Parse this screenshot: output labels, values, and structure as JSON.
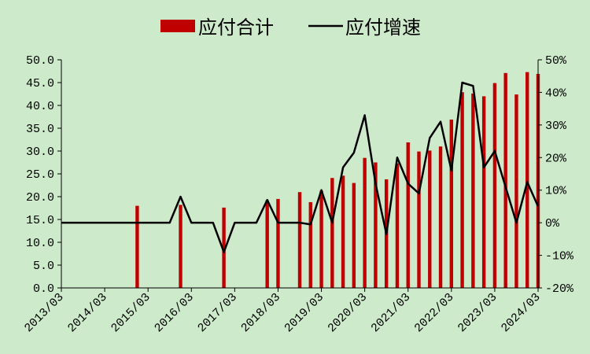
{
  "chart_data": {
    "type": "bar",
    "legend": {
      "position": "top-center",
      "bar_label": "应付合计",
      "line_label": "应付增速"
    },
    "colors": {
      "bar": "#c00000",
      "line": "#000000",
      "background": "#cdeacb"
    },
    "grid": false,
    "x_ticks": [
      "2013/03",
      "2014/03",
      "2015/03",
      "2016/03",
      "2017/03",
      "2018/03",
      "2019/03",
      "2020/03",
      "2021/03",
      "2022/03",
      "2023/03",
      "2024/03"
    ],
    "left_axis": {
      "ylim": [
        0,
        50
      ],
      "tick_labels": [
        "0.0",
        "5.0",
        "10.0",
        "15.0",
        "20.0",
        "25.0",
        "30.0",
        "35.0",
        "40.0",
        "45.0",
        "50.0"
      ]
    },
    "right_axis": {
      "ylim": [
        -0.2,
        0.5
      ],
      "tick_labels": [
        "-20%",
        "-10%",
        "0%",
        "10%",
        "20%",
        "30%",
        "40%",
        "50%"
      ]
    },
    "series": [
      {
        "name": "应付合计",
        "type": "bar",
        "axis": "left",
        "x": [
          "2014/12",
          "2015/12",
          "2016/12",
          "2017/12",
          "2018/03",
          "2018/09",
          "2018/12",
          "2019/03",
          "2019/06",
          "2019/09",
          "2019/12",
          "2020/03",
          "2020/06",
          "2020/09",
          "2020/12",
          "2021/03",
          "2021/06",
          "2021/09",
          "2021/12",
          "2022/03",
          "2022/06",
          "2022/09",
          "2022/12",
          "2023/03",
          "2023/06",
          "2023/09",
          "2023/12",
          "2024/03"
        ],
        "values": [
          18.0,
          18.2,
          17.6,
          19.2,
          19.5,
          21.0,
          18.8,
          21.3,
          24.1,
          24.6,
          23.0,
          28.5,
          27.5,
          23.8,
          27.3,
          31.9,
          29.9,
          30.1,
          31.0,
          36.9,
          42.9,
          42.6,
          42.0,
          44.9,
          47.1,
          42.4,
          47.3,
          46.9
        ]
      },
      {
        "name": "应付增速",
        "type": "line",
        "axis": "right",
        "x": [
          "2013/03",
          "2013/06",
          "2013/09",
          "2013/12",
          "2014/03",
          "2014/06",
          "2014/09",
          "2014/12",
          "2015/03",
          "2015/06",
          "2015/09",
          "2015/12",
          "2016/03",
          "2016/06",
          "2016/09",
          "2016/12",
          "2017/03",
          "2017/06",
          "2017/09",
          "2017/12",
          "2018/03",
          "2018/06",
          "2018/09",
          "2018/12",
          "2019/03",
          "2019/06",
          "2019/09",
          "2019/12",
          "2020/03",
          "2020/06",
          "2020/09",
          "2020/12",
          "2021/03",
          "2021/06",
          "2021/09",
          "2021/12",
          "2022/03",
          "2022/06",
          "2022/09",
          "2022/12",
          "2023/03",
          "2023/06",
          "2023/09",
          "2023/12",
          "2024/03"
        ],
        "values": [
          0,
          0,
          0,
          0,
          0,
          0,
          0,
          0,
          0,
          0,
          0,
          0.08,
          0,
          0,
          0,
          -0.09,
          0,
          0,
          0,
          0.07,
          0,
          0,
          0,
          -0.005,
          0.1,
          0,
          0.17,
          0.215,
          0.33,
          0.12,
          -0.035,
          0.2,
          0.12,
          0.09,
          0.26,
          0.31,
          0.16,
          0.43,
          0.42,
          0.17,
          0.22,
          0.11,
          0,
          0.125,
          0.05
        ]
      }
    ]
  }
}
